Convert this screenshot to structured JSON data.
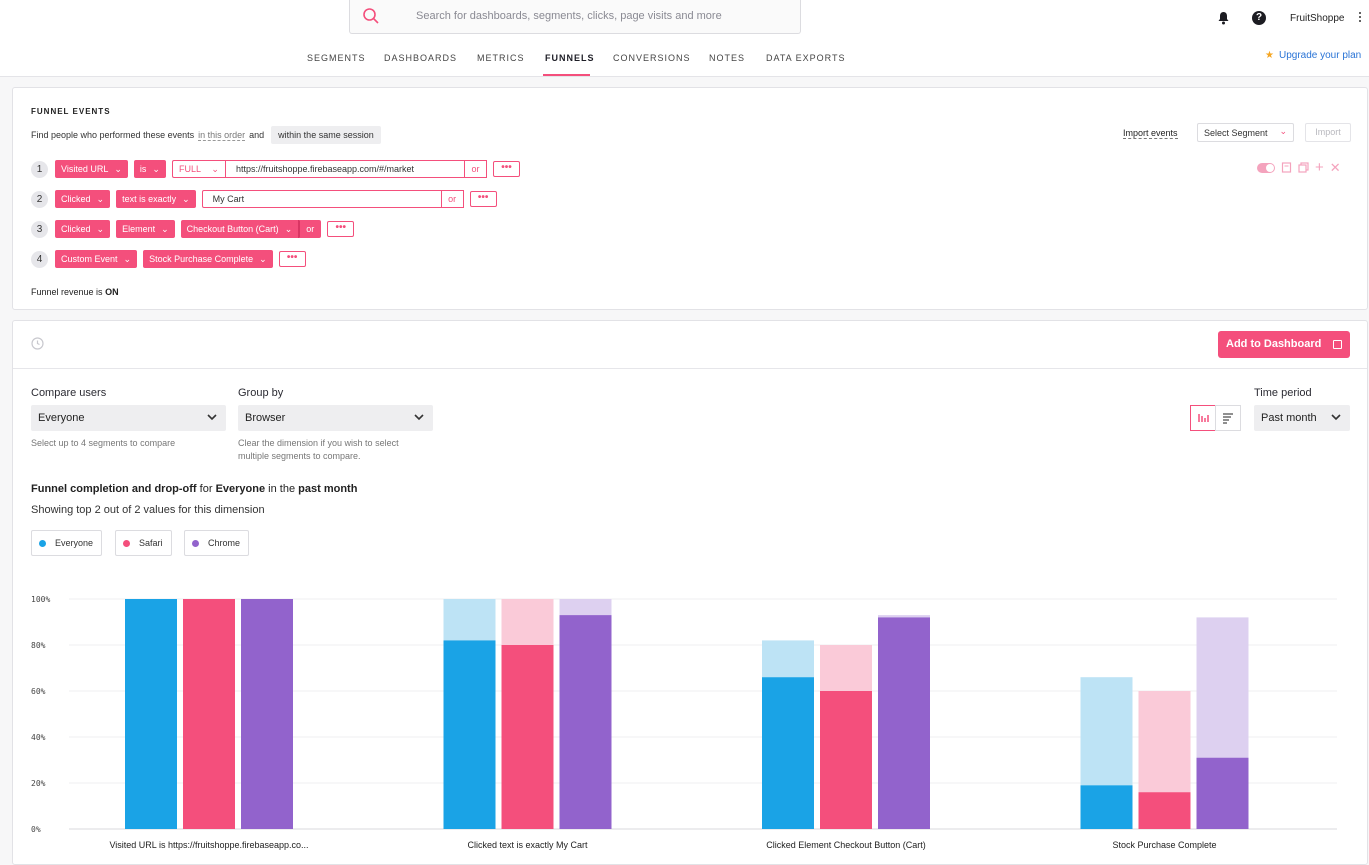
{
  "search": {
    "placeholder": "Search for dashboards, segments, clicks, page visits and more"
  },
  "account": {
    "name": "FruitShoppe"
  },
  "nav": {
    "tabs": [
      "SEGMENTS",
      "DASHBOARDS",
      "METRICS",
      "FUNNELS",
      "CONVERSIONS",
      "NOTES",
      "DATA EXPORTS"
    ],
    "active": "FUNNELS",
    "upgrade": "Upgrade your plan"
  },
  "funnel": {
    "title": "FUNNEL EVENTS",
    "desc_prefix": "Find people who performed these events",
    "desc_order": "in this order",
    "desc_and": "and",
    "desc_session": "within the same session",
    "import_events": "Import events",
    "select_segment": "Select Segment",
    "import": "Import",
    "steps": [
      {
        "n": "1",
        "event": "Visited URL",
        "op": "is",
        "mode": "FULL",
        "value": "https://fruitshoppe.firebaseapp.com/#/market",
        "or": "or",
        "more": "•••"
      },
      {
        "n": "2",
        "event": "Clicked",
        "op": "text is exactly",
        "value": "My Cart",
        "or": "or",
        "more": "•••"
      },
      {
        "n": "3",
        "event": "Clicked",
        "op": "Element",
        "value": "Checkout Button (Cart)",
        "or": "or",
        "more": "•••"
      },
      {
        "n": "4",
        "event": "Custom Event",
        "value": "Stock Purchase Complete",
        "more": "•••"
      }
    ],
    "revenue_prefix": "Funnel revenue is",
    "revenue_state": "ON"
  },
  "results": {
    "add_to_dashboard": "Add to Dashboard",
    "compare_label": "Compare users",
    "compare_value": "Everyone",
    "compare_hint": "Select up to 4 segments to compare",
    "group_label": "Group by",
    "group_value": "Browser",
    "group_hint_1": "Clear the dimension if you wish to select",
    "group_hint_2": "multiple segments to compare.",
    "time_label": "Time period",
    "time_value": "Past month",
    "sub_a": "Funnel completion and drop-off",
    "sub_b": "for",
    "sub_c": "Everyone",
    "sub_d": "in the",
    "sub_e": "past month",
    "showing": "Showing top 2 out of 2 values for this dimension"
  },
  "colors": {
    "accent": "#f44f7c",
    "everyone": "#1aa3e6",
    "safari": "#f44f7c",
    "chrome": "#9263cc"
  },
  "chart_data": {
    "type": "bar",
    "title": "Funnel completion and drop-off for Everyone in the past month",
    "categories": [
      "Visited URL is https://fruitshoppe.firebaseapp.co...",
      "Clicked text is exactly My Cart",
      "Clicked Element Checkout Button (Cart)",
      "Stock Purchase Complete"
    ],
    "y_ticks": [
      "0%",
      "20%",
      "40%",
      "60%",
      "80%",
      "100%"
    ],
    "ylim": [
      0,
      100
    ],
    "series": [
      {
        "name": "Everyone",
        "color": "#1aa3e6",
        "light": "#bde3f5",
        "completion": [
          100,
          82,
          66,
          19
        ],
        "previous": [
          100,
          100,
          82,
          66
        ]
      },
      {
        "name": "Safari",
        "color": "#f44f7c",
        "light": "#facad8",
        "completion": [
          100,
          80,
          60,
          16
        ],
        "previous": [
          100,
          100,
          80,
          60
        ]
      },
      {
        "name": "Chrome",
        "color": "#9263cc",
        "light": "#ddd0f0",
        "completion": [
          100,
          93,
          92,
          31
        ],
        "previous": [
          100,
          100,
          93,
          92
        ]
      }
    ]
  }
}
